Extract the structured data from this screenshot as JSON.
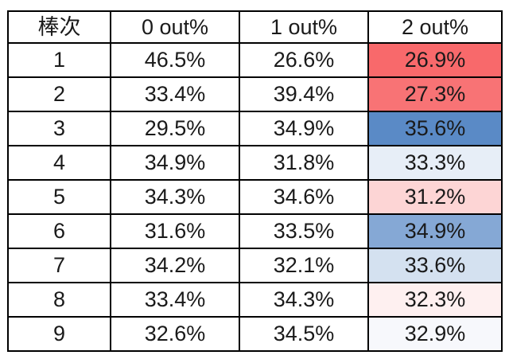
{
  "chart_data": {
    "type": "table",
    "title": "",
    "columns": [
      "棒次",
      "0 out%",
      "1 out%",
      "2 out%"
    ],
    "rows": [
      [
        "1",
        "46.5%",
        "26.6%",
        "26.9%"
      ],
      [
        "2",
        "33.4%",
        "39.4%",
        "27.3%"
      ],
      [
        "3",
        "29.5%",
        "34.9%",
        "35.6%"
      ],
      [
        "4",
        "34.9%",
        "31.8%",
        "33.3%"
      ],
      [
        "5",
        "34.3%",
        "34.6%",
        "31.2%"
      ],
      [
        "6",
        "31.6%",
        "33.5%",
        "34.9%"
      ],
      [
        "7",
        "34.2%",
        "32.1%",
        "33.6%"
      ],
      [
        "8",
        "33.4%",
        "34.3%",
        "32.3%"
      ],
      [
        "9",
        "32.6%",
        "34.5%",
        "32.9%"
      ]
    ],
    "heatmap": {
      "column": "2 out%",
      "scale": "red-low to blue-high, white at median",
      "colors": [
        "#F8696B",
        "#F87375",
        "#5A8AC6",
        "#E7EEF7",
        "#FDD5D5",
        "#85A8D5",
        "#D4E1F0",
        "#FEF0F0",
        "#F7F8FC"
      ]
    }
  },
  "colors": {
    "border": "#000000",
    "background": "#FFFFFF",
    "text": "#1A1A1A"
  }
}
